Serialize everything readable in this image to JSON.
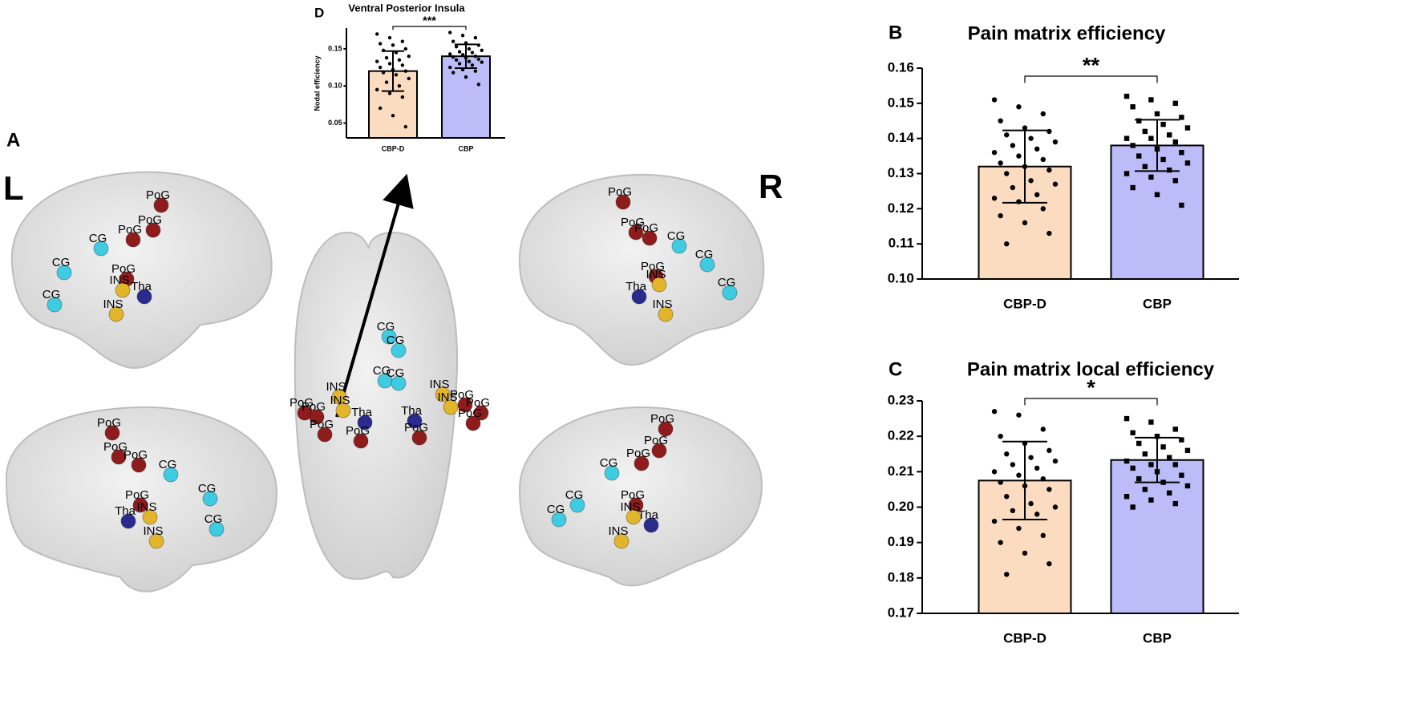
{
  "chart_data": [
    {
      "type": "bar",
      "panel": "D",
      "title": "Ventral Posterior Insula",
      "ylabel": "Nodal efficiency",
      "categories": [
        "CBP-D",
        "CBP"
      ],
      "values": [
        0.12,
        0.14
      ],
      "errors": [
        0.027,
        0.016
      ],
      "colors": [
        "#fbdcc0",
        "#bcbcf8"
      ],
      "significance": "***",
      "ylim": [
        0.03,
        0.178
      ],
      "yticks": [
        0.05,
        {
          "value": 0.1,
          "label": "0.10"
        },
        0.15
      ],
      "points": [
        [
          0.17,
          0.165,
          0.16,
          0.157,
          0.155,
          0.15,
          0.148,
          0.145,
          0.14,
          0.138,
          0.135,
          0.133,
          0.13,
          0.128,
          0.125,
          0.122,
          0.12,
          0.118,
          0.115,
          0.11,
          0.105,
          0.1,
          0.095,
          0.09,
          0.085,
          0.07,
          0.06,
          0.045
        ],
        [
          0.172,
          0.168,
          0.165,
          0.16,
          0.158,
          0.155,
          0.153,
          0.15,
          0.148,
          0.146,
          0.145,
          0.143,
          0.142,
          0.14,
          0.139,
          0.138,
          0.136,
          0.135,
          0.133,
          0.132,
          0.13,
          0.128,
          0.125,
          0.122,
          0.12,
          0.118,
          0.112,
          0.102
        ]
      ]
    },
    {
      "type": "bar",
      "panel": "B",
      "title": "Pain matrix efficiency",
      "categories": [
        "CBP-D",
        "CBP"
      ],
      "values": [
        0.132,
        0.138
      ],
      "errors": [
        0.0103,
        0.0073
      ],
      "colors": [
        "#fbdcc0",
        "#bcbcf8"
      ],
      "significance": "**",
      "ylim": [
        0.1,
        0.16
      ],
      "yticks": [
        {
          "value": 0.1,
          "label": "0.10"
        },
        0.11,
        0.12,
        0.13,
        0.14,
        0.15,
        0.16
      ],
      "points": [
        [
          0.151,
          0.149,
          0.147,
          0.145,
          0.143,
          0.142,
          0.141,
          0.14,
          0.139,
          0.138,
          0.137,
          0.136,
          0.135,
          0.134,
          0.133,
          0.132,
          0.131,
          0.13,
          0.128,
          0.127,
          0.126,
          0.124,
          0.123,
          0.122,
          0.12,
          0.118,
          0.116,
          0.113,
          0.11
        ],
        [
          0.152,
          0.151,
          0.15,
          0.149,
          0.147,
          0.146,
          0.145,
          0.144,
          0.143,
          0.142,
          0.141,
          0.14,
          0.14,
          0.139,
          0.138,
          0.137,
          0.136,
          0.135,
          0.134,
          0.133,
          0.132,
          0.131,
          0.13,
          0.129,
          0.128,
          0.126,
          0.124,
          0.121
        ]
      ]
    },
    {
      "type": "bar",
      "panel": "C",
      "title": "Pain matrix local efficiency",
      "categories": [
        "CBP-D",
        "CBP"
      ],
      "values": [
        0.2075,
        0.2133
      ],
      "errors": [
        0.011,
        0.0063
      ],
      "colors": [
        "#fbdcc0",
        "#bcbcf8"
      ],
      "significance": "*",
      "ylim": [
        0.17,
        0.23
      ],
      "yticks": [
        0.17,
        0.18,
        0.19,
        {
          "value": 0.2,
          "label": "0.20"
        },
        0.21,
        0.22,
        0.23
      ],
      "points": [
        [
          0.227,
          0.226,
          0.222,
          0.22,
          0.218,
          0.216,
          0.215,
          0.214,
          0.213,
          0.212,
          0.211,
          0.21,
          0.209,
          0.208,
          0.207,
          0.206,
          0.205,
          0.203,
          0.201,
          0.2,
          0.199,
          0.198,
          0.196,
          0.194,
          0.192,
          0.19,
          0.187,
          0.184,
          0.181
        ],
        [
          0.225,
          0.224,
          0.222,
          0.221,
          0.22,
          0.219,
          0.218,
          0.217,
          0.216,
          0.215,
          0.214,
          0.213,
          0.212,
          0.212,
          0.211,
          0.21,
          0.209,
          0.208,
          0.207,
          0.206,
          0.205,
          0.204,
          0.203,
          0.202,
          0.201,
          0.2
        ]
      ]
    }
  ],
  "brain": {
    "panel": "A",
    "left": "L",
    "right": "R",
    "views": [
      {
        "labels": [
          "PoG",
          "PoG",
          "PoG",
          "CG",
          "CG",
          "CG",
          "PoG",
          "INS",
          "Tha",
          "INS"
        ]
      },
      {
        "labels": [
          "PoG",
          "PoG",
          "PoG",
          "CG",
          "CG",
          "CG",
          "PoG",
          "INS",
          "Tha",
          "INS"
        ]
      },
      {
        "labels": [
          "CG",
          "CG",
          "CG",
          "CG",
          "INS",
          "INS",
          "PoG",
          "PoG",
          "Tha",
          "PoG",
          "PoG",
          "Tha",
          "INS",
          "INS",
          "PoG",
          "PoG",
          "PoG",
          "PoG"
        ]
      },
      {
        "labels": [
          "PoG",
          "PoG",
          "PoG",
          "CG",
          "CG",
          "CG",
          "PoG",
          "INS",
          "Tha",
          "INS"
        ]
      },
      {
        "labels": [
          "PoG",
          "PoG",
          "PoG",
          "CG",
          "CG",
          "CG",
          "PoG",
          "INS",
          "Tha",
          "INS"
        ]
      }
    ]
  }
}
